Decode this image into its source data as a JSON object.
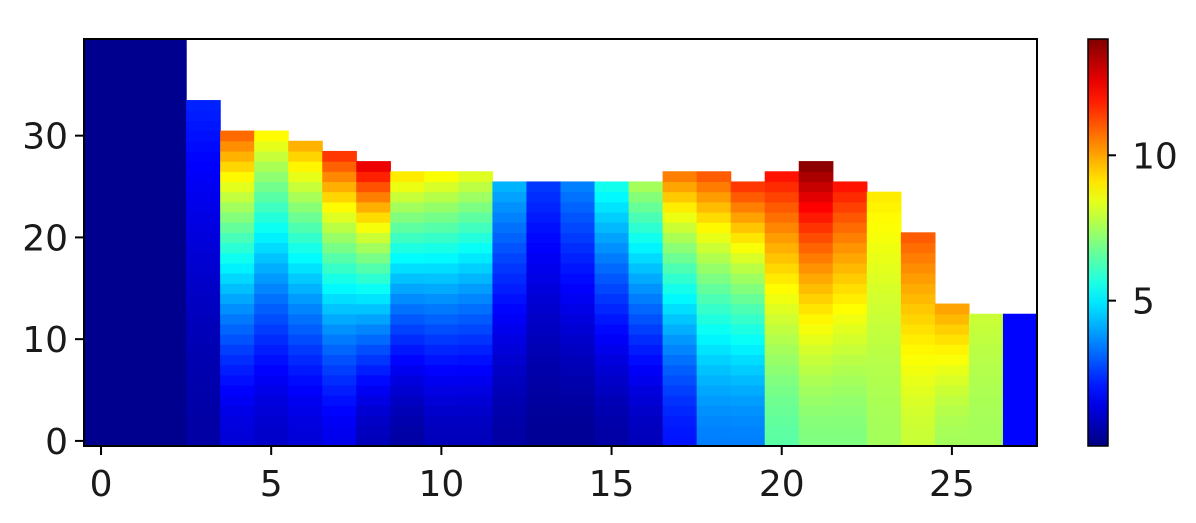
{
  "chart_data": {
    "type": "heatmap",
    "title": "",
    "xlabel": "",
    "ylabel": "",
    "colormap": "jet",
    "xlim": [
      -0.5,
      27.5
    ],
    "ylim": [
      -0.5,
      39.5
    ],
    "x_ticks": [
      0,
      5,
      10,
      15,
      20,
      25
    ],
    "y_ticks": [
      0,
      10,
      20,
      30
    ],
    "colorbar": {
      "range": [
        0,
        14
      ],
      "ticks": [
        5,
        10
      ],
      "tick_labels": [
        "5",
        "10"
      ]
    },
    "columns": [
      {
        "x": 0,
        "height": 40,
        "bottom": 0.2,
        "top": 0.2
      },
      {
        "x": 1,
        "height": 40,
        "bottom": 0.2,
        "top": 0.2
      },
      {
        "x": 2,
        "height": 40,
        "bottom": 0.2,
        "top": 0.2
      },
      {
        "x": 3,
        "height": 34,
        "bottom": 0.5,
        "top": 2.2
      },
      {
        "x": 4,
        "height": 31,
        "bottom": 1.2,
        "top": 10.8
      },
      {
        "x": 5,
        "height": 31,
        "bottom": 1.0,
        "top": 8.8
      },
      {
        "x": 6,
        "height": 30,
        "bottom": 1.2,
        "top": 9.8
      },
      {
        "x": 7,
        "height": 29,
        "bottom": 1.5,
        "top": 11.5
      },
      {
        "x": 8,
        "height": 28,
        "bottom": 0.8,
        "top": 12.5
      },
      {
        "x": 9,
        "height": 27,
        "bottom": 0.5,
        "top": 9.0
      },
      {
        "x": 10,
        "height": 27,
        "bottom": 0.8,
        "top": 8.7
      },
      {
        "x": 11,
        "height": 27,
        "bottom": 0.8,
        "top": 8.3
      },
      {
        "x": 12,
        "height": 26,
        "bottom": 0.5,
        "top": 4.2
      },
      {
        "x": 13,
        "height": 26,
        "bottom": 0.3,
        "top": 2.5
      },
      {
        "x": 14,
        "height": 26,
        "bottom": 0.3,
        "top": 3.5
      },
      {
        "x": 15,
        "height": 26,
        "bottom": 0.5,
        "top": 5.5
      },
      {
        "x": 16,
        "height": 26,
        "bottom": 0.8,
        "top": 7.5
      },
      {
        "x": 17,
        "height": 27,
        "bottom": 2.0,
        "top": 10.5
      },
      {
        "x": 18,
        "height": 27,
        "bottom": 3.5,
        "top": 11.0
      },
      {
        "x": 19,
        "height": 26,
        "bottom": 3.5,
        "top": 11.5
      },
      {
        "x": 20,
        "height": 27,
        "bottom": 6.5,
        "top": 12.0
      },
      {
        "x": 21,
        "height": 28,
        "bottom": 7.0,
        "top": 13.8
      },
      {
        "x": 22,
        "height": 26,
        "bottom": 7.0,
        "top": 12.0
      },
      {
        "x": 23,
        "height": 25,
        "bottom": 7.5,
        "top": 9.0
      },
      {
        "x": 24,
        "height": 21,
        "bottom": 8.0,
        "top": 11.0
      },
      {
        "x": 25,
        "height": 14,
        "bottom": 7.5,
        "top": 10.0
      },
      {
        "x": 26,
        "height": 13,
        "bottom": 7.5,
        "top": 8.0
      },
      {
        "x": 27,
        "height": 13,
        "bottom": 1.8,
        "top": 1.8
      }
    ],
    "grid": false,
    "legend": "none"
  }
}
